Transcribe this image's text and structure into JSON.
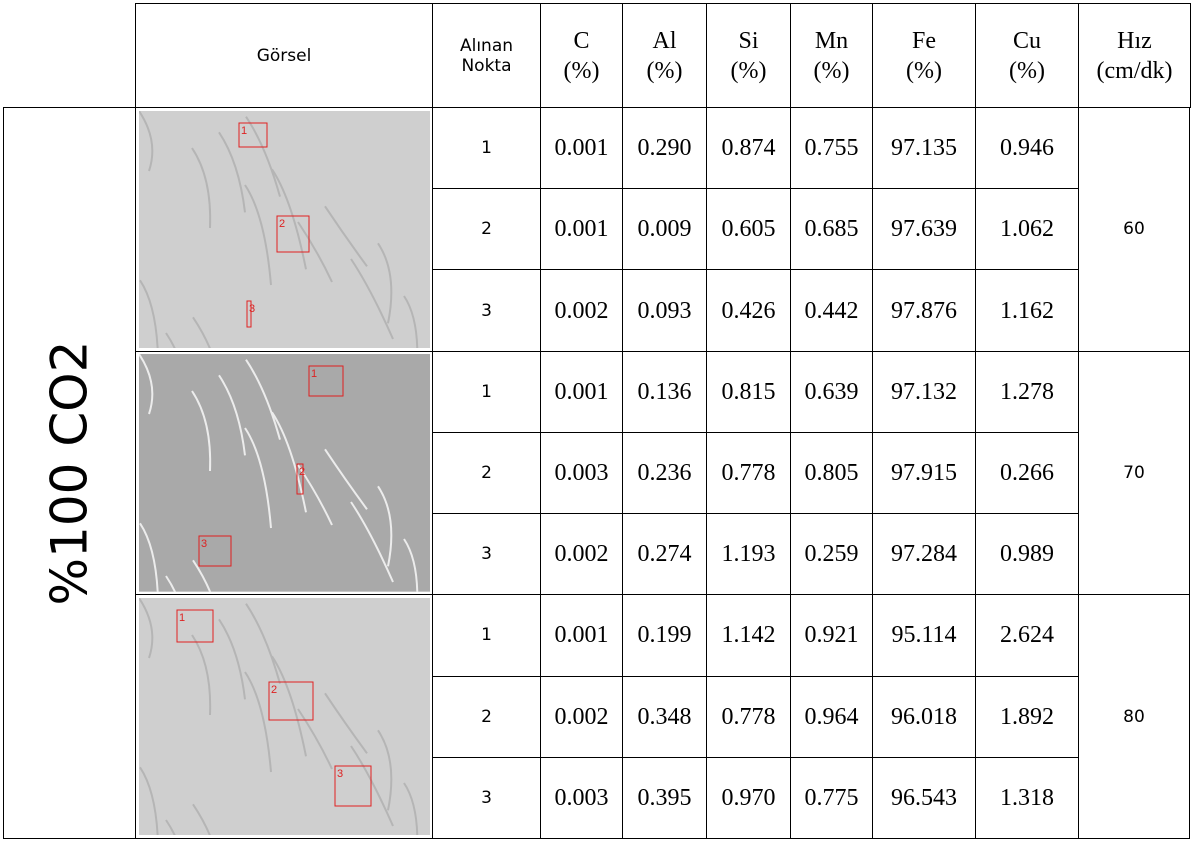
{
  "header": {
    "cells": [
      [
        "Görsel"
      ],
      [
        "Alınan",
        "Nokta"
      ],
      [
        "C",
        "(%)"
      ],
      [
        "Al",
        "(%)"
      ],
      [
        "Si",
        "(%)"
      ],
      [
        "Mn",
        "(%)"
      ],
      [
        "Fe",
        "(%)"
      ],
      [
        "Cu",
        "(%)"
      ],
      [
        "Hız",
        "(cm/dk)"
      ]
    ]
  },
  "group_label": "%100 CO2",
  "groups": [
    {
      "speed": "60",
      "markers": [
        "1",
        "2",
        "3"
      ],
      "rows": [
        [
          "1",
          "0.001",
          "0.290",
          "0.874",
          "0.755",
          "97.135",
          "0.946"
        ],
        [
          "2",
          "0.001",
          "0.009",
          "0.605",
          "0.685",
          "97.639",
          "1.062"
        ],
        [
          "3",
          "0.002",
          "0.093",
          "0.426",
          "0.442",
          "97.876",
          "1.162"
        ]
      ]
    },
    {
      "speed": "70",
      "markers": [
        "1",
        "2",
        "3"
      ],
      "rows": [
        [
          "1",
          "0.001",
          "0.136",
          "0.815",
          "0.639",
          "97.132",
          "1.278"
        ],
        [
          "2",
          "0.003",
          "0.236",
          "0.778",
          "0.805",
          "97.915",
          "0.266"
        ],
        [
          "3",
          "0.002",
          "0.274",
          "1.193",
          "0.259",
          "97.284",
          "0.989"
        ]
      ]
    },
    {
      "speed": "80",
      "markers": [
        "1",
        "2",
        "3"
      ],
      "rows": [
        [
          "1",
          "0.001",
          "0.199",
          "1.142",
          "0.921",
          "95.114",
          "2.624"
        ],
        [
          "2",
          "0.002",
          "0.348",
          "0.778",
          "0.964",
          "96.018",
          "1.892"
        ],
        [
          "3",
          "0.003",
          "0.395",
          "0.970",
          "0.775",
          "96.543",
          "1.318"
        ]
      ]
    }
  ]
}
